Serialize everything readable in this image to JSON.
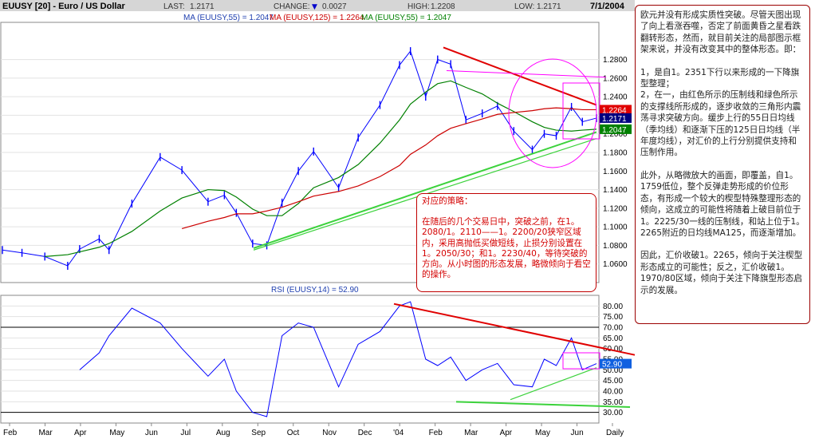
{
  "header": {
    "symbol": "EUUSY [20] - Euro / US Dollar",
    "last_label": "LAST:",
    "last_value": "1.2171",
    "change_label": "CHANGE:",
    "change_arrow": "▼",
    "change_value": "0.0027",
    "high_label": "HIGH:",
    "high_value": "1.2208",
    "low_label": "LOW:",
    "low_value": "1.2171",
    "date": "7/1/2004"
  },
  "ma_legend": {
    "ma55": "MA (EUUSY,55) = 1.2047",
    "ma125": "MA (EUUSY,125) = 1.2264",
    "ma55b": "MA (EUUSY,55) = 1.2047"
  },
  "rsi_legend": "RSI (EUUSY,14) = 52.90",
  "value_tags": {
    "ma125": "1.2264",
    "last": "1.2171",
    "ma55": "1.2047",
    "rsi": "52.90"
  },
  "colors": {
    "price": "#0000ff",
    "ma55": "#008000",
    "ma125": "#cc0000",
    "resistance": "#e00000",
    "support": "#3cd23c",
    "box": "#ff00ff",
    "header_bg": "#d6d6d6",
    "panel_bg": "#ffffff",
    "grid": "#e2e2e2"
  },
  "commentary": {
    "p1": "欧元并没有形成实质性突破。尽管天图出现了向上看涨吞噬，否定了前面黄昏之星看跌翻转形态，然而，就目前关注的局部图示框架来说，并没有改变其中的整体形态。即：",
    "p2": "1，是自1。2351下行以来形成的一下降旗型整理；",
    "p3": "2，在一，由红色所示的压制线和绿色所示的支撑线所形成的，逐步收敛的三角形内震荡寻求突破方向。缓步上行的55日日均线（季均线）和逐渐下压的125日日均线（半年度均线），对汇价的上行分别提供支持和压制作用。",
    "p4": "此外，从略微放大的画面，即覆盖，自1。1759低位，整个反弹走势形成的价位形态，有形成一个较大的楔型特殊整理形态的倾向，这成立的可能性将随着上破目前位于1。2225/30一线的压制线，和站上位于1。2265附近的日均线MA125，而逐渐增加。",
    "p5": "因此，汇价收破1。2265，倾向于关注楔型形态成立的可能性；反之，汇价收破1。1970/80区域，倾向于关注下降旗型形态启示的发展。"
  },
  "strategy": {
    "title": "对应的策略：",
    "body": "在随后的几个交易日中，突破之前，在1。2080/1。2110——1。2200/20狭窄区域内，采用高抛低买做短线，止损分别设置在1。2050/30；和1。2230/40，等待突破的方向。从小时图的形态发展，略微倾向于看空的操作。"
  },
  "chart_data": [
    {
      "type": "line",
      "title": "EUUSY [20] - Euro / US Dollar",
      "ylim": [
        1.04,
        1.32
      ],
      "yticks": [
        "1.0600",
        "1.0800",
        "1.1000",
        "1.1200",
        "1.1400",
        "1.1600",
        "1.1800",
        "1.2000",
        "1.2200",
        "1.2400",
        "1.2600",
        "1.2800"
      ],
      "x_tick_labels": [
        "Feb",
        "Mar",
        "Apr",
        "May",
        "Jun",
        "Jul",
        "Aug",
        "Sep",
        "Oct",
        "Nov",
        "Dec",
        "'04",
        "Feb",
        "Mar",
        "Apr",
        "May",
        "Jun",
        "Daily"
      ],
      "x": [
        "2003-01-02",
        "2003-01-20",
        "2003-02-10",
        "2003-03-03",
        "2003-03-14",
        "2003-04-01",
        "2003-04-10",
        "2003-05-01",
        "2003-05-27",
        "2003-06-16",
        "2003-07-10",
        "2003-07-25",
        "2003-08-05",
        "2003-08-20",
        "2003-09-02",
        "2003-09-16",
        "2003-10-01",
        "2003-10-15",
        "2003-11-07",
        "2003-11-25",
        "2003-12-15",
        "2004-01-02",
        "2004-01-12",
        "2004-01-26",
        "2004-02-06",
        "2004-02-18",
        "2004-03-03",
        "2004-03-18",
        "2004-04-01",
        "2004-04-16",
        "2004-05-03",
        "2004-05-14",
        "2004-05-25",
        "2004-06-08",
        "2004-06-18",
        "2004-07-01"
      ],
      "series": [
        {
          "name": "EUUSY",
          "values": [
            1.075,
            1.072,
            1.068,
            1.058,
            1.076,
            1.087,
            1.075,
            1.125,
            1.175,
            1.161,
            1.127,
            1.134,
            1.115,
            1.082,
            1.08,
            1.126,
            1.16,
            1.181,
            1.142,
            1.196,
            1.231,
            1.274,
            1.289,
            1.24,
            1.28,
            1.275,
            1.215,
            1.222,
            1.23,
            1.203,
            1.183,
            1.2,
            1.198,
            1.229,
            1.213,
            1.217
          ]
        },
        {
          "name": "MA (EUUSY,55)",
          "values": [
            null,
            null,
            1.068,
            1.07,
            1.073,
            1.078,
            1.082,
            1.095,
            1.117,
            1.131,
            1.14,
            1.139,
            1.132,
            1.119,
            1.112,
            1.112,
            1.125,
            1.142,
            1.153,
            1.167,
            1.19,
            1.215,
            1.232,
            1.245,
            1.254,
            1.257,
            1.25,
            1.243,
            1.233,
            1.224,
            1.213,
            1.207,
            1.204,
            1.203,
            1.204,
            1.205
          ]
        },
        {
          "name": "MA (EUUSY,125)",
          "values": [
            null,
            null,
            null,
            null,
            null,
            null,
            null,
            null,
            null,
            1.098,
            1.106,
            1.11,
            1.114,
            1.114,
            1.117,
            1.121,
            1.127,
            1.133,
            1.138,
            1.144,
            1.154,
            1.166,
            1.178,
            1.188,
            1.198,
            1.206,
            1.211,
            1.216,
            1.221,
            1.223,
            1.225,
            1.227,
            1.228,
            1.227,
            1.226,
            1.226
          ]
        }
      ]
    },
    {
      "type": "line",
      "title": "RSI (EUUSY,14) = 52.90",
      "ylim": [
        25,
        85
      ],
      "yticks": [
        "30.00",
        "35.00",
        "40.00",
        "45.00",
        "50.00",
        "55.00",
        "60.00",
        "65.00",
        "70.00",
        "75.00",
        "80.00"
      ],
      "x": [
        "2003-01-02",
        "2003-01-20",
        "2003-02-10",
        "2003-03-03",
        "2003-03-14",
        "2003-04-01",
        "2003-04-10",
        "2003-05-01",
        "2003-05-27",
        "2003-06-16",
        "2003-07-10",
        "2003-07-25",
        "2003-08-05",
        "2003-08-20",
        "2003-09-02",
        "2003-09-16",
        "2003-10-01",
        "2003-10-15",
        "2003-11-07",
        "2003-11-25",
        "2003-12-15",
        "2004-01-02",
        "2004-01-12",
        "2004-01-26",
        "2004-02-06",
        "2004-02-18",
        "2004-03-03",
        "2004-03-18",
        "2004-04-01",
        "2004-04-16",
        "2004-05-03",
        "2004-05-14",
        "2004-05-25",
        "2004-06-08",
        "2004-06-18",
        "2004-07-01"
      ],
      "series": [
        {
          "name": "RSI (EUUSY,14)",
          "values": [
            null,
            null,
            null,
            null,
            50,
            58,
            66,
            79,
            72,
            60,
            47,
            55,
            40,
            30,
            28,
            66,
            72,
            70,
            42,
            62,
            68,
            80,
            82,
            55,
            52,
            56,
            45,
            50,
            53,
            43,
            42,
            55,
            52,
            65,
            50,
            52.9
          ]
        }
      ]
    }
  ]
}
